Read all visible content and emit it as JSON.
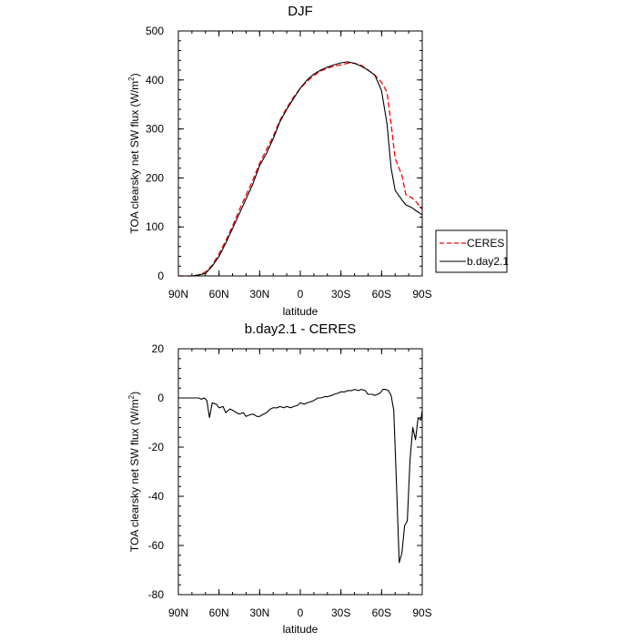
{
  "chart_data": [
    {
      "type": "line",
      "title": "DJF",
      "xlabel": "latitude",
      "ylabel": "TOA clearsky net SW flux (W/m",
      "ylabel_sup": "2",
      "ylabel_end": ")",
      "xlim": [
        -90,
        90
      ],
      "ylim": [
        0,
        500
      ],
      "xticks": [
        {
          "value": -90,
          "label": "90N"
        },
        {
          "value": -60,
          "label": "60N"
        },
        {
          "value": -30,
          "label": "30N"
        },
        {
          "value": 0,
          "label": "0"
        },
        {
          "value": 30,
          "label": "30S"
        },
        {
          "value": 60,
          "label": "60S"
        },
        {
          "value": 90,
          "label": "90S"
        }
      ],
      "yticks": [
        {
          "value": 0,
          "label": "0"
        },
        {
          "value": 100,
          "label": "100"
        },
        {
          "value": 200,
          "label": "200"
        },
        {
          "value": 300,
          "label": "300"
        },
        {
          "value": 400,
          "label": "400"
        },
        {
          "value": 500,
          "label": "500"
        }
      ],
      "legend": "right",
      "series": [
        {
          "name": "CERES",
          "color": "#ff0000",
          "dash": true,
          "x": [
            -90,
            -85,
            -80,
            -75,
            -70,
            -65,
            -60,
            -55,
            -50,
            -45,
            -40,
            -35,
            -30,
            -25,
            -20,
            -15,
            -10,
            -5,
            0,
            5,
            10,
            15,
            20,
            25,
            30,
            35,
            40,
            45,
            50,
            55,
            60,
            64,
            67,
            70,
            75,
            78,
            82,
            86,
            90
          ],
          "y": [
            0,
            0,
            0,
            2,
            8,
            22,
            45,
            72,
            102,
            135,
            165,
            196,
            230,
            258,
            285,
            318,
            343,
            365,
            383,
            397,
            409,
            418,
            424,
            428,
            431,
            434,
            434,
            430,
            420,
            410,
            395,
            375,
            310,
            240,
            205,
            165,
            160,
            150,
            135
          ]
        },
        {
          "name": "b.day2.1",
          "color": "#000000",
          "dash": false,
          "x": [
            -90,
            -85,
            -80,
            -75,
            -70,
            -65,
            -60,
            -55,
            -50,
            -45,
            -40,
            -35,
            -30,
            -25,
            -20,
            -15,
            -10,
            -5,
            0,
            5,
            10,
            15,
            20,
            25,
            30,
            35,
            40,
            45,
            50,
            55,
            60,
            64,
            67,
            70,
            75,
            78,
            82,
            86,
            90
          ],
          "y": [
            0,
            0,
            0,
            2,
            5,
            20,
            40,
            67,
            97,
            127,
            157,
            188,
            225,
            250,
            280,
            315,
            340,
            362,
            383,
            400,
            412,
            420,
            426,
            431,
            435,
            437,
            434,
            428,
            420,
            410,
            378,
            310,
            220,
            175,
            155,
            145,
            140,
            132,
            125
          ]
        }
      ]
    },
    {
      "type": "line",
      "title": "b.day2.1 - CERES",
      "xlabel": "latitude",
      "ylabel": "TOA clearsky net SW flux (W/m",
      "ylabel_sup": "2",
      "ylabel_end": ")",
      "xlim": [
        -90,
        90
      ],
      "ylim": [
        -80,
        20
      ],
      "xticks": [
        {
          "value": -90,
          "label": "90N"
        },
        {
          "value": -60,
          "label": "60N"
        },
        {
          "value": -30,
          "label": "30N"
        },
        {
          "value": 0,
          "label": "0"
        },
        {
          "value": 30,
          "label": "30S"
        },
        {
          "value": 60,
          "label": "60S"
        },
        {
          "value": 90,
          "label": "90S"
        }
      ],
      "yticks": [
        {
          "value": -80,
          "label": "-80"
        },
        {
          "value": -60,
          "label": "-60"
        },
        {
          "value": -40,
          "label": "-40"
        },
        {
          "value": -20,
          "label": "-20"
        },
        {
          "value": 0,
          "label": "0"
        },
        {
          "value": 20,
          "label": "20"
        }
      ],
      "series": [
        {
          "name": "b.day2.1 - CERES",
          "color": "#000000",
          "dash": false,
          "x": [
            -90,
            -85,
            -80,
            -75,
            -73,
            -71,
            -69,
            -67,
            -65,
            -62,
            -60,
            -57,
            -55,
            -52,
            -50,
            -47,
            -45,
            -42,
            -40,
            -38,
            -35,
            -32,
            -30,
            -27,
            -25,
            -22,
            -20,
            -17,
            -15,
            -12,
            -10,
            -7,
            -5,
            -2,
            0,
            3,
            5,
            8,
            10,
            13,
            15,
            18,
            20,
            23,
            25,
            28,
            30,
            33,
            35,
            38,
            40,
            43,
            45,
            48,
            50,
            53,
            55,
            57,
            59,
            61,
            63,
            65,
            67,
            69,
            71,
            73,
            75,
            77,
            79,
            81,
            83,
            85,
            87,
            89,
            90
          ],
          "y": [
            0,
            0,
            0,
            0,
            -0.5,
            0,
            -1,
            -8,
            -2,
            -2.5,
            -4,
            -3.5,
            -6,
            -4.5,
            -5,
            -6,
            -6.5,
            -6,
            -7.5,
            -7,
            -6.5,
            -7.5,
            -7.5,
            -6.5,
            -6,
            -4.5,
            -4,
            -4,
            -3.5,
            -4,
            -3.5,
            -4,
            -3.5,
            -3,
            -2,
            -2.5,
            -2,
            -1.5,
            -1,
            0,
            0,
            0.5,
            0.5,
            1,
            1.5,
            2,
            2.5,
            2.5,
            3,
            3,
            3.5,
            3,
            3.5,
            3,
            1.5,
            1.5,
            1,
            1.5,
            2,
            3.5,
            3.5,
            3,
            1,
            -5,
            -35,
            -67,
            -63,
            -52,
            -50,
            -25,
            -12,
            -17,
            -8,
            -9,
            -5
          ]
        }
      ]
    }
  ]
}
